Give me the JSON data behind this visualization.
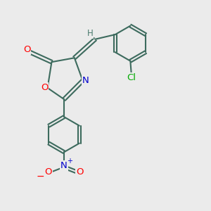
{
  "bg_color": "#ebebeb",
  "bond_color": "#3d6b5e",
  "bond_width": 1.5,
  "atom_colors": {
    "O": "#ff0000",
    "N": "#0000cc",
    "Cl": "#00aa00",
    "H": "#4a7a6e",
    "C": "#3d6b5e"
  }
}
